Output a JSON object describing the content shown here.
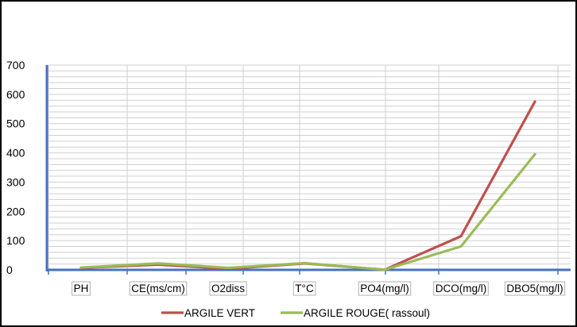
{
  "chart_data": {
    "type": "line",
    "title": "",
    "xlabel": "",
    "ylabel": "",
    "categories": [
      "PH",
      "CE(ms/cm)",
      "O2diss",
      "T°C",
      "PO4(mg/l)",
      "DCO(mg/l)",
      "DBO5(mg/l)"
    ],
    "ylim": [
      0,
      700
    ],
    "yticks": [
      "0",
      "100",
      "200",
      "300",
      "400",
      "500",
      "600",
      "700"
    ],
    "grid": true,
    "legend_position": "bottom",
    "series": [
      {
        "name": "ARGILE VERT",
        "color": "#c0504d",
        "values": [
          7,
          18,
          4,
          22,
          0.5,
          115,
          575
        ]
      },
      {
        "name": "ARGILE ROUGE( rassoul)",
        "color": "#9bbb59",
        "values": [
          8,
          22,
          7,
          23,
          0.5,
          80,
          395
        ]
      }
    ]
  }
}
